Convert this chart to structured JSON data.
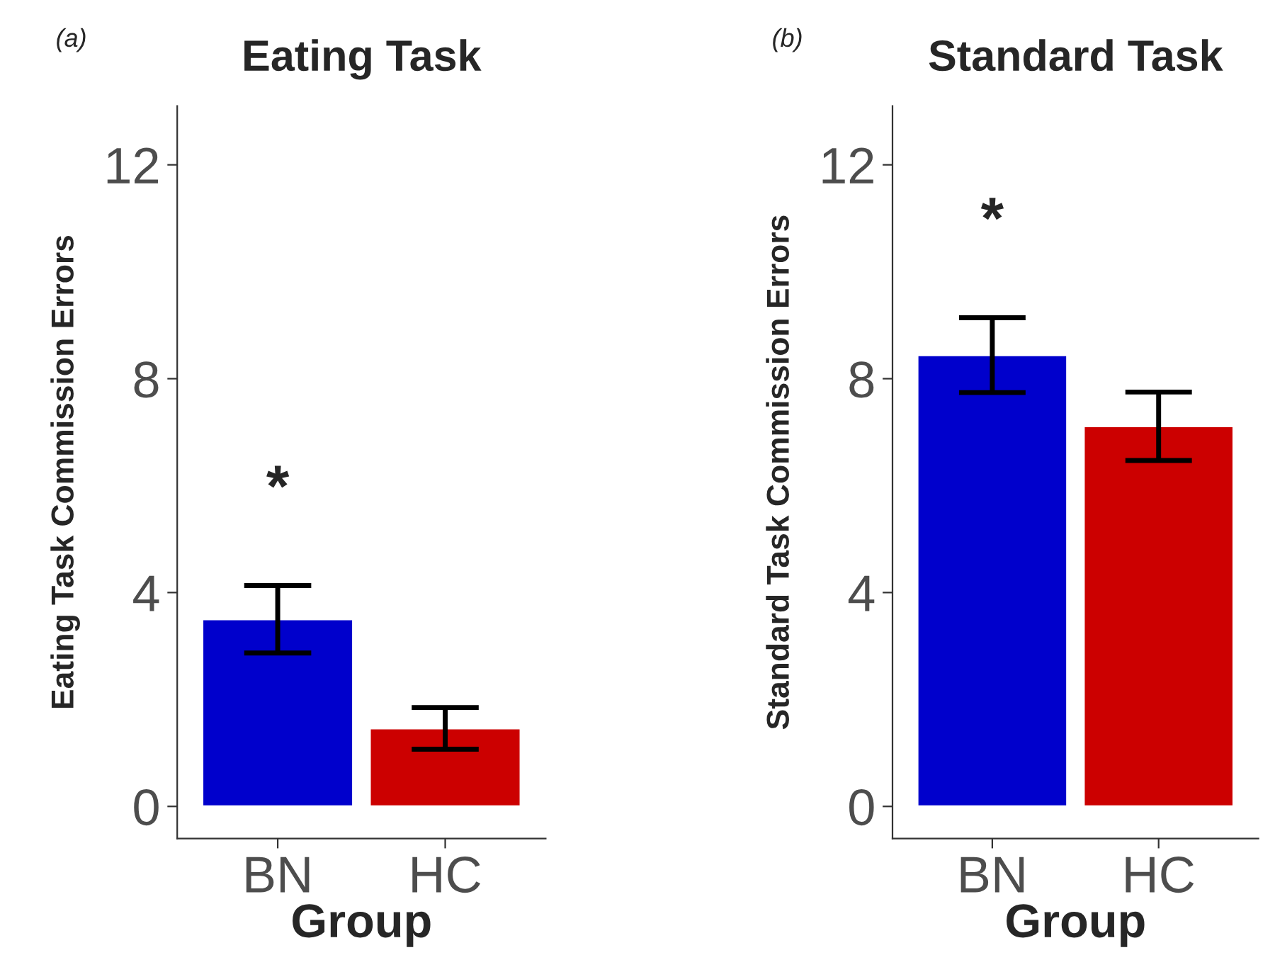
{
  "chart_data": [
    {
      "type": "bar",
      "title": "Eating Task",
      "xlabel": "Group",
      "ylabel": "Eating Task Commission Errors",
      "categories": [
        "BN",
        "HC"
      ],
      "values": [
        3.5,
        1.46
      ],
      "colors": [
        "#0000cc",
        "#cc0000"
      ],
      "errors": [
        [
          2.87,
          4.13
        ],
        [
          1.07,
          1.85
        ]
      ],
      "ylim": [
        -0.6,
        13.1
      ],
      "yticks": [
        0,
        4,
        8,
        12
      ],
      "grid": false,
      "legend": false,
      "annotations": [
        "(a)",
        "*"
      ]
    },
    {
      "type": "bar",
      "title": "Standard Task",
      "xlabel": "Group",
      "ylabel": "Standard Task Commission Errors",
      "categories": [
        "BN",
        "HC"
      ],
      "values": [
        8.44,
        7.11
      ],
      "colors": [
        "#0000cc",
        "#cc0000"
      ],
      "errors": [
        [
          7.74,
          9.14
        ],
        [
          6.47,
          7.75
        ]
      ],
      "ylim": [
        -0.6,
        13.1
      ],
      "yticks": [
        0,
        4,
        8,
        12
      ],
      "grid": false,
      "legend": false,
      "annotations": [
        "(b)",
        "*"
      ]
    }
  ]
}
